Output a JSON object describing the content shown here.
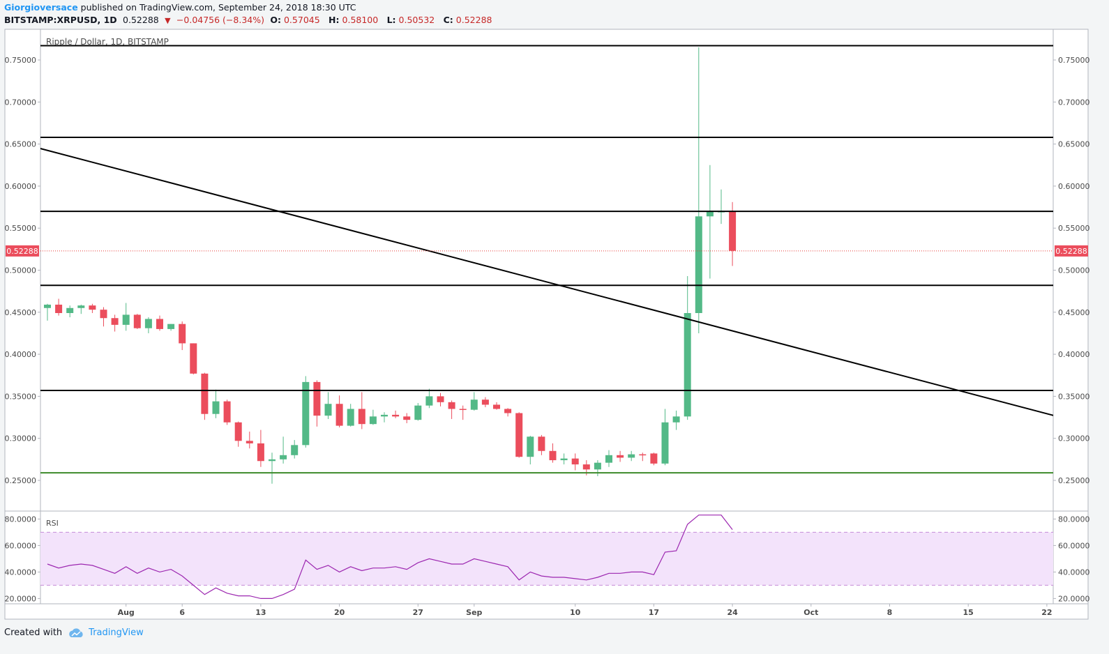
{
  "header": {
    "author": "Giorgioversace",
    "published_text": "published on TradingView.com, September 24, 2018 18:30 UTC",
    "symbol": "BITSTAMP:XRPUSD, 1D",
    "last": "0.52288",
    "change": "−0.04756 (−8.34%)",
    "o_label": "O:",
    "o_value": "0.57045",
    "h_label": "H:",
    "h_value": "0.58100",
    "l_label": "L:",
    "l_value": "0.50532",
    "c_label": "C:",
    "c_value": "0.52288"
  },
  "footer": {
    "created_with": "Created with",
    "brand": "TradingView"
  },
  "colors": {
    "up": "#53b987",
    "down": "#eb4d5c",
    "support": "#3d8a2a",
    "rsi_line": "#9c27b0",
    "rsi_band": "#f3e3fb"
  },
  "chart_data": {
    "type": "candlestick",
    "title": "Ripple / Dollar, 1D, BITSTAMP",
    "last_price_label": "0.52288",
    "y_ticks": [
      "0.25000",
      "0.30000",
      "0.35000",
      "0.40000",
      "0.45000",
      "0.50000",
      "0.55000",
      "0.60000",
      "0.65000",
      "0.70000",
      "0.75000"
    ],
    "ylim": [
      0.2135,
      0.7865
    ],
    "x_ticks": [
      {
        "label": "Aug",
        "i": 7
      },
      {
        "label": "6",
        "i": 12
      },
      {
        "label": "13",
        "i": 19
      },
      {
        "label": "20",
        "i": 26
      },
      {
        "label": "27",
        "i": 33
      },
      {
        "label": "Sep",
        "i": 38
      },
      {
        "label": "10",
        "i": 47
      },
      {
        "label": "17",
        "i": 54
      },
      {
        "label": "24",
        "i": 61
      },
      {
        "label": "Oct",
        "i": 68
      },
      {
        "label": "8",
        "i": 75
      },
      {
        "label": "15",
        "i": 82
      },
      {
        "label": "22",
        "i": 89
      }
    ],
    "x_count": 91,
    "candles": [
      [
        0.455,
        0.46,
        0.44,
        0.459
      ],
      [
        0.459,
        0.466,
        0.446,
        0.449
      ],
      [
        0.449,
        0.458,
        0.444,
        0.455
      ],
      [
        0.455,
        0.459,
        0.448,
        0.458
      ],
      [
        0.458,
        0.46,
        0.449,
        0.453
      ],
      [
        0.453,
        0.456,
        0.433,
        0.443
      ],
      [
        0.443,
        0.447,
        0.427,
        0.435
      ],
      [
        0.435,
        0.461,
        0.428,
        0.447
      ],
      [
        0.447,
        0.448,
        0.43,
        0.431
      ],
      [
        0.431,
        0.444,
        0.425,
        0.442
      ],
      [
        0.442,
        0.446,
        0.428,
        0.43
      ],
      [
        0.43,
        0.436,
        0.428,
        0.436
      ],
      [
        0.436,
        0.439,
        0.405,
        0.413
      ],
      [
        0.413,
        0.413,
        0.376,
        0.377
      ],
      [
        0.377,
        0.378,
        0.322,
        0.329
      ],
      [
        0.329,
        0.358,
        0.324,
        0.344
      ],
      [
        0.344,
        0.346,
        0.316,
        0.319
      ],
      [
        0.319,
        0.32,
        0.29,
        0.297
      ],
      [
        0.297,
        0.308,
        0.288,
        0.294
      ],
      [
        0.294,
        0.31,
        0.266,
        0.273
      ],
      [
        0.273,
        0.283,
        0.246,
        0.275
      ],
      [
        0.275,
        0.302,
        0.27,
        0.28
      ],
      [
        0.28,
        0.298,
        0.276,
        0.292
      ],
      [
        0.292,
        0.374,
        0.289,
        0.367
      ],
      [
        0.367,
        0.369,
        0.314,
        0.327
      ],
      [
        0.327,
        0.355,
        0.323,
        0.341
      ],
      [
        0.341,
        0.351,
        0.313,
        0.315
      ],
      [
        0.315,
        0.341,
        0.314,
        0.335
      ],
      [
        0.335,
        0.355,
        0.311,
        0.317
      ],
      [
        0.317,
        0.334,
        0.316,
        0.326
      ],
      [
        0.326,
        0.331,
        0.319,
        0.328
      ],
      [
        0.328,
        0.333,
        0.324,
        0.326
      ],
      [
        0.326,
        0.33,
        0.318,
        0.322
      ],
      [
        0.322,
        0.342,
        0.321,
        0.339
      ],
      [
        0.339,
        0.359,
        0.336,
        0.35
      ],
      [
        0.35,
        0.354,
        0.338,
        0.343
      ],
      [
        0.343,
        0.345,
        0.323,
        0.335
      ],
      [
        0.335,
        0.339,
        0.322,
        0.334
      ],
      [
        0.334,
        0.355,
        0.333,
        0.346
      ],
      [
        0.346,
        0.349,
        0.337,
        0.34
      ],
      [
        0.34,
        0.343,
        0.334,
        0.335
      ],
      [
        0.335,
        0.336,
        0.326,
        0.33
      ],
      [
        0.33,
        0.331,
        0.277,
        0.278
      ],
      [
        0.278,
        0.303,
        0.269,
        0.302
      ],
      [
        0.302,
        0.304,
        0.28,
        0.285
      ],
      [
        0.285,
        0.294,
        0.271,
        0.274
      ],
      [
        0.274,
        0.282,
        0.269,
        0.276
      ],
      [
        0.276,
        0.282,
        0.262,
        0.269
      ],
      [
        0.269,
        0.274,
        0.256,
        0.263
      ],
      [
        0.263,
        0.274,
        0.255,
        0.271
      ],
      [
        0.271,
        0.286,
        0.266,
        0.28
      ],
      [
        0.28,
        0.285,
        0.272,
        0.277
      ],
      [
        0.277,
        0.285,
        0.273,
        0.281
      ],
      [
        0.281,
        0.283,
        0.273,
        0.28
      ],
      [
        0.282,
        0.283,
        0.268,
        0.27
      ],
      [
        0.27,
        0.335,
        0.268,
        0.319
      ],
      [
        0.319,
        0.333,
        0.31,
        0.326
      ],
      [
        0.326,
        0.493,
        0.322,
        0.449
      ],
      [
        0.449,
        0.765,
        0.425,
        0.564
      ],
      [
        0.564,
        0.625,
        0.49,
        0.57
      ],
      [
        0.57,
        0.596,
        0.555,
        0.57
      ],
      [
        0.57,
        0.581,
        0.505,
        0.523
      ]
    ],
    "rsi": {
      "label": "RSI",
      "y_ticks": [
        "20.0000",
        "40.0000",
        "60.0000",
        "80.0000"
      ],
      "ylim": [
        16,
        86
      ],
      "band": [
        30,
        70
      ],
      "values": [
        46,
        43,
        45,
        46,
        45,
        42,
        39,
        44,
        39,
        43,
        40,
        42,
        37,
        30,
        23,
        28,
        24,
        22,
        22,
        20,
        20,
        23,
        27,
        49,
        42,
        45,
        40,
        44,
        41,
        43,
        43,
        44,
        42,
        47,
        50,
        48,
        46,
        46,
        50,
        48,
        46,
        44,
        34,
        40,
        37,
        36,
        36,
        35,
        34,
        36,
        39,
        39,
        40,
        40,
        38,
        55,
        56,
        76,
        83,
        83,
        83,
        72
      ]
    },
    "lines": [
      {
        "kind": "horizontal",
        "value": 0.767
      },
      {
        "kind": "horizontal",
        "value": 0.658
      },
      {
        "kind": "horizontal",
        "value": 0.57
      },
      {
        "kind": "horizontal",
        "value": 0.482
      },
      {
        "kind": "horizontal",
        "value": 0.357
      },
      {
        "kind": "horizontal_support",
        "value": 0.259
      },
      {
        "kind": "trend",
        "i1": -1,
        "v1": 0.646,
        "i2": 90.5,
        "v2": 0.324
      }
    ]
  }
}
